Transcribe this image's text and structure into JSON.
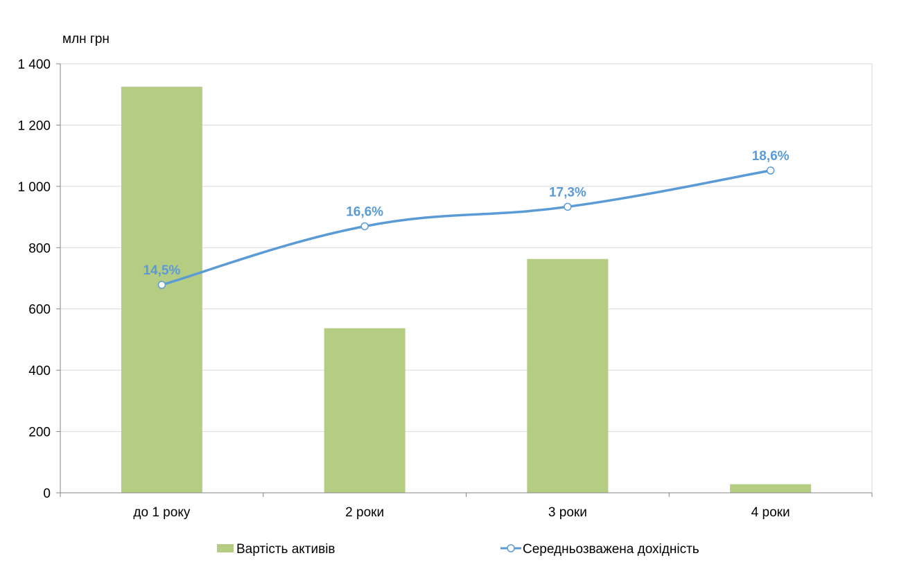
{
  "chart_data": {
    "type": "bar",
    "ylabel": "млн грн",
    "ylim": [
      0,
      1400
    ],
    "yticks": [
      0,
      200,
      400,
      600,
      800,
      1000,
      1200,
      1400
    ],
    "ytick_labels": [
      "0",
      "200",
      "400",
      "600",
      "800",
      "1 000",
      "1 200",
      "1 400"
    ],
    "categories": [
      "до 1 року",
      "2 роки",
      "3 роки",
      "4 роки"
    ],
    "series": [
      {
        "name": "Вартість активів",
        "type": "bar",
        "color": "#b5cc83",
        "values": [
          1325,
          537,
          763,
          28
        ]
      },
      {
        "name": "Середньозважена дохідність",
        "type": "line",
        "color": "#5b9bd5",
        "marker": "circle-open",
        "values": [
          14.5,
          16.6,
          17.3,
          18.6
        ],
        "labels": [
          "14,5%",
          "16,6%",
          "17,3%",
          "18,6%"
        ]
      }
    ],
    "grid": true,
    "legend": "bottom"
  }
}
